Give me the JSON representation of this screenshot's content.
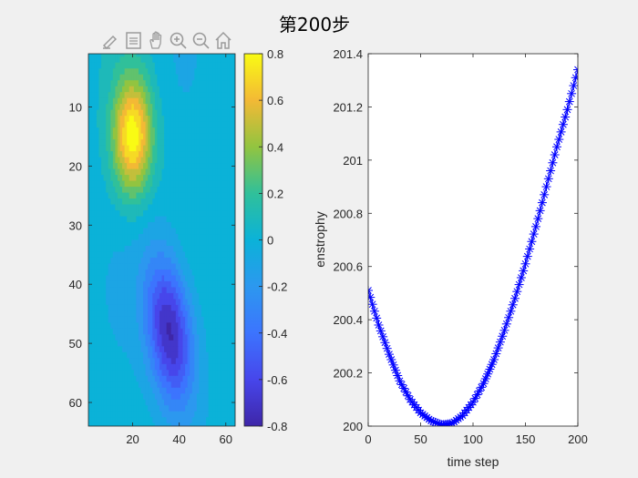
{
  "figure": {
    "title": "第200步",
    "toolbar": {
      "icons": [
        "brush-icon",
        "legend-icon",
        "pan-hand-icon",
        "zoom-in-icon",
        "zoom-out-icon",
        "home-icon"
      ]
    }
  },
  "chart_data": [
    {
      "type": "heatmap",
      "title": "",
      "xlabel": "",
      "ylabel": "",
      "xlim": [
        1,
        64
      ],
      "ylim": [
        64,
        1
      ],
      "xticks": [
        20,
        40,
        60
      ],
      "yticks": [
        10,
        20,
        30,
        40,
        50,
        60
      ],
      "xtick_labels": [
        "20",
        "40",
        "60"
      ],
      "ytick_labels": [
        "10",
        "20",
        "30",
        "40",
        "50",
        "60"
      ],
      "blobs": [
        {
          "x": 20,
          "y": 15,
          "amplitude": 0.8
        },
        {
          "x": 36,
          "y": 48,
          "amplitude": -0.8
        }
      ],
      "colorbar": {
        "range": [
          -0.8,
          0.8
        ],
        "ticks": [
          -0.8,
          -0.6,
          -0.4,
          -0.2,
          0,
          0.2,
          0.4,
          0.6,
          0.8
        ],
        "tick_labels": [
          "-0.8",
          "-0.6",
          "-0.4",
          "-0.2",
          "0",
          "0.2",
          "0.4",
          "0.6",
          "0.8"
        ],
        "colormap": "parula"
      }
    },
    {
      "type": "line",
      "title": "",
      "xlabel": "time step",
      "ylabel": "enstrophy",
      "xlim": [
        0,
        200
      ],
      "ylim": [
        200,
        201.4
      ],
      "xticks": [
        0,
        50,
        100,
        150,
        200
      ],
      "yticks": [
        200,
        200.2,
        200.4,
        200.6,
        200.8,
        201,
        201.2,
        201.4
      ],
      "xtick_labels": [
        "0",
        "50",
        "100",
        "150",
        "200"
      ],
      "ytick_labels": [
        "200",
        "200.2",
        "200.4",
        "200.6",
        "200.8",
        "201",
        "201.2",
        "201.4"
      ],
      "marker": "*",
      "color": "#0000ff",
      "series": [
        {
          "x": [
            0,
            10,
            20,
            30,
            40,
            50,
            60,
            70,
            80,
            90,
            100,
            110,
            120,
            130,
            140,
            150,
            160,
            170,
            180,
            190,
            200
          ],
          "y": [
            200.51,
            200.38,
            200.27,
            200.17,
            200.1,
            200.05,
            200.02,
            200.005,
            200.01,
            200.04,
            200.09,
            200.16,
            200.25,
            200.36,
            200.48,
            200.61,
            200.75,
            200.9,
            201.05,
            201.19,
            201.34
          ]
        }
      ]
    }
  ]
}
